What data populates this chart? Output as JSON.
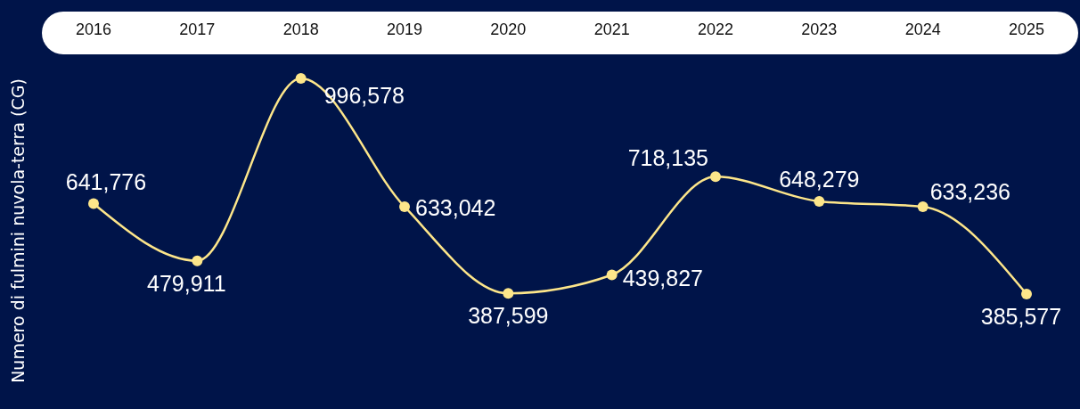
{
  "chart_data": {
    "type": "line",
    "ylabel": "Numero di fulmini nuvola-terra (CG)",
    "categories": [
      "2016",
      "2017",
      "2018",
      "2019",
      "2020",
      "2021",
      "2022",
      "2023",
      "2024",
      "2025"
    ],
    "series": [
      {
        "color": "#fde68a",
        "values": [
          641776,
          479911,
          996578,
          633042,
          387599,
          439827,
          718135,
          648279,
          633236,
          385577
        ],
        "value_labels": [
          "641,776",
          "479,911",
          "996,578",
          "633,042",
          "387,599",
          "439,827",
          "718,135",
          "648,279",
          "633,236",
          "385,577"
        ]
      }
    ],
    "marker": "circle",
    "line_style": "solid",
    "grid": false,
    "legend": false
  }
}
